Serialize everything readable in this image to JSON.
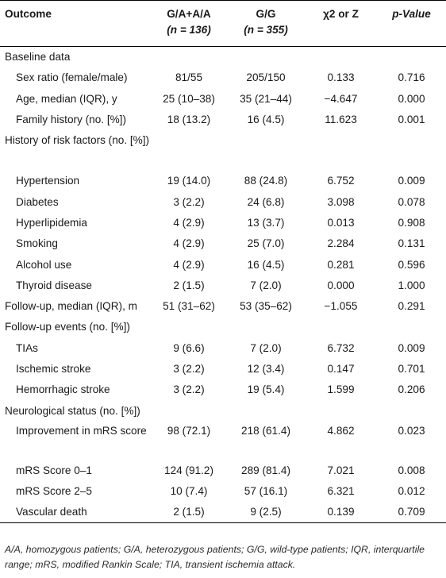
{
  "table": {
    "headers": {
      "outcome": "Outcome",
      "ga_aa": "G/A+A/A",
      "ga_aa_n": "(n = 136)",
      "gg": "G/G",
      "gg_n": "(n = 355)",
      "stat": "χ2 or Z",
      "pvalue": "p-Value"
    },
    "sections": [
      {
        "title": "Baseline data",
        "rows": [
          {
            "label": "Sex ratio (female/male)",
            "ga_aa": "81/55",
            "gg": "205/150",
            "stat": "0.133",
            "p": "0.716"
          },
          {
            "label": "Age, median (IQR), y",
            "ga_aa": "25 (10–38)",
            "gg": "35 (21–44)",
            "stat": "−4.647",
            "p": "0.000"
          },
          {
            "label": "Family history (no. [%])",
            "ga_aa": "18 (13.2)",
            "gg": "16 (4.5)",
            "stat": "11.623",
            "p": "0.001"
          }
        ]
      },
      {
        "title": "History of risk factors (no. [%])",
        "rows": [
          {
            "label": "Hypertension",
            "ga_aa": "19 (14.0)",
            "gg": "88 (24.8)",
            "stat": "6.752",
            "p": "0.009"
          },
          {
            "label": "Diabetes",
            "ga_aa": "3 (2.2)",
            "gg": "24 (6.8)",
            "stat": "3.098",
            "p": "0.078"
          },
          {
            "label": "Hyperlipidemia",
            "ga_aa": "4 (2.9)",
            "gg": "13 (3.7)",
            "stat": "0.013",
            "p": "0.908"
          },
          {
            "label": "Smoking",
            "ga_aa": "4 (2.9)",
            "gg": "25 (7.0)",
            "stat": "2.284",
            "p": "0.131"
          },
          {
            "label": "Alcohol use",
            "ga_aa": "4 (2.9)",
            "gg": "16 (4.5)",
            "stat": "0.281",
            "p": "0.596"
          },
          {
            "label": "Thyroid disease",
            "ga_aa": "2 (1.5)",
            "gg": "7 (2.0)",
            "stat": "0.000",
            "p": "1.000"
          }
        ]
      },
      {
        "title": "Follow-up, median (IQR), m",
        "values": {
          "ga_aa": "51 (31–62)",
          "gg": "53 (35–62)",
          "stat": "−1.055",
          "p": "0.291"
        }
      },
      {
        "title": "Follow-up events (no. [%])",
        "rows": [
          {
            "label": "TIAs",
            "ga_aa": "9 (6.6)",
            "gg": "7 (2.0)",
            "stat": "6.732",
            "p": "0.009"
          },
          {
            "label": "Ischemic stroke",
            "ga_aa": "3 (2.2)",
            "gg": "12 (3.4)",
            "stat": "0.147",
            "p": "0.701"
          },
          {
            "label": "Hemorrhagic stroke",
            "ga_aa": "3 (2.2)",
            "gg": "19 (5.4)",
            "stat": "1.599",
            "p": "0.206"
          }
        ]
      },
      {
        "title": "Neurological status (no. [%])",
        "rows": [
          {
            "label": "Improvement in mRS score",
            "ga_aa": "98 (72.1)",
            "gg": "218 (61.4)",
            "stat": "4.862",
            "p": "0.023"
          },
          {
            "label": "mRS Score 0–1",
            "ga_aa": "124 (91.2)",
            "gg": "289 (81.4)",
            "stat": "7.021",
            "p": "0.008"
          },
          {
            "label": "mRS Score 2–5",
            "ga_aa": "10 (7.4)",
            "gg": "57 (16.1)",
            "stat": "6.321",
            "p": "0.012"
          },
          {
            "label": "Vascular death",
            "ga_aa": "2 (1.5)",
            "gg": "9 (2.5)",
            "stat": "0.139",
            "p": "0.709"
          }
        ]
      }
    ]
  },
  "footnote": "A/A, homozygous patients; G/A, heterozygous patients; G/G, wild-type patients; IQR, interquartile range; mRS, modified Rankin Scale; TIA, transient ischemia attack."
}
